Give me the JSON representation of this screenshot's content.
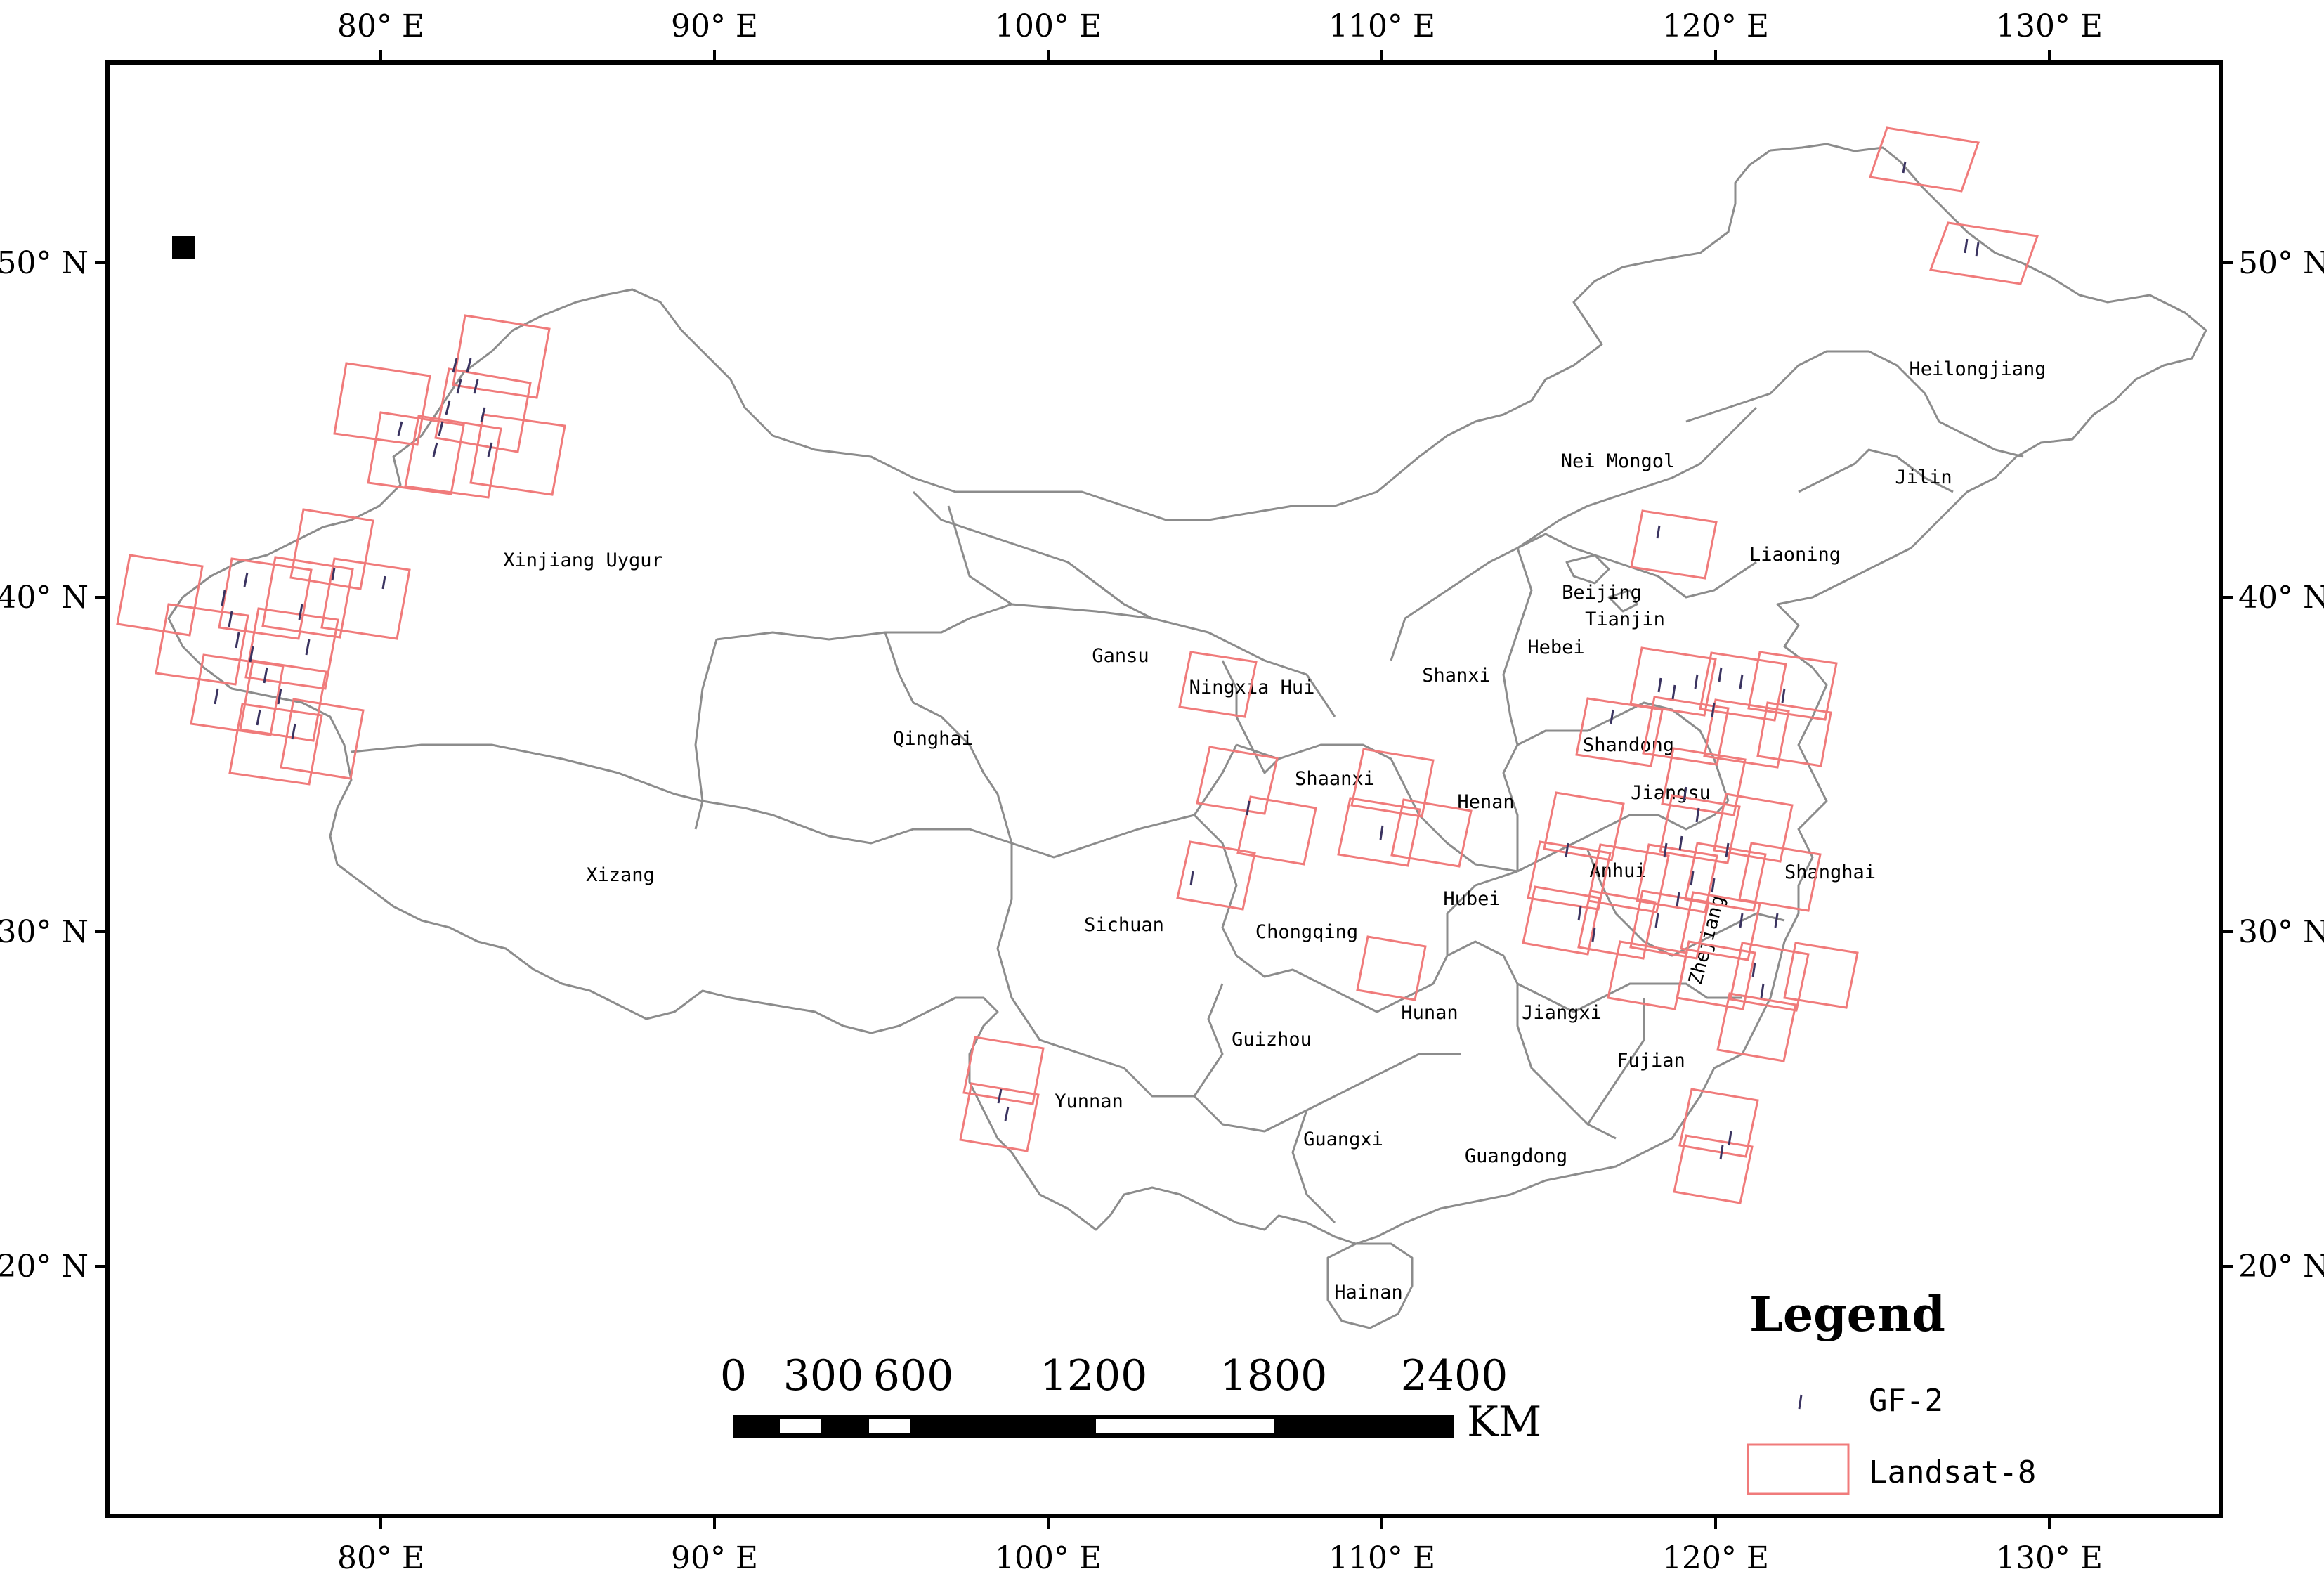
{
  "axes": {
    "lon_labels": [
      "80° E",
      "90° E",
      "100° E",
      "110° E",
      "120° E",
      "130° E"
    ],
    "lat_labels_left": [
      "50° N",
      "40° N",
      "30° N",
      "20° N"
    ],
    "lat_labels_right": [
      "50° N",
      "40° N",
      "30° N",
      "20° N"
    ]
  },
  "provinces": [
    {
      "name": "Heilongjiang"
    },
    {
      "name": "Jilin"
    },
    {
      "name": "Liaoning"
    },
    {
      "name": "Nei Mongol"
    },
    {
      "name": "Beijing"
    },
    {
      "name": "Tianjin"
    },
    {
      "name": "Hebei"
    },
    {
      "name": "Shanxi"
    },
    {
      "name": "Shandong"
    },
    {
      "name": "Jiangsu"
    },
    {
      "name": "Shanghai"
    },
    {
      "name": "Anhui"
    },
    {
      "name": "Zhejiang"
    },
    {
      "name": "Henan"
    },
    {
      "name": "Hubei"
    },
    {
      "name": "Hunan"
    },
    {
      "name": "Jiangxi"
    },
    {
      "name": "Fujian"
    },
    {
      "name": "Guangdong"
    },
    {
      "name": "Guangxi"
    },
    {
      "name": "Hainan"
    },
    {
      "name": "Guizhou"
    },
    {
      "name": "Yunnan"
    },
    {
      "name": "Sichuan"
    },
    {
      "name": "Chongqing"
    },
    {
      "name": "Shaanxi"
    },
    {
      "name": "Ningxia Hui"
    },
    {
      "name": "Gansu"
    },
    {
      "name": "Qinghai"
    },
    {
      "name": "Xizang"
    },
    {
      "name": "Xinjiang Uygur"
    }
  ],
  "scale_bar": {
    "ticks": [
      "0",
      "300",
      "600",
      "1200",
      "1800",
      "2400"
    ],
    "unit": "KM"
  },
  "legend": {
    "title": "Legend",
    "items": [
      {
        "label": "GF-2",
        "symbol": "gf2-strip"
      },
      {
        "label": "Landsat-8",
        "symbol": "landsat8-footprint",
        "color": "#f07b7b"
      }
    ]
  },
  "colors": {
    "frame": "#000000",
    "boundary": "#8c8c8c",
    "landsat8": "#f07b7b",
    "gf2": "#3a3360"
  },
  "icons": {
    "north_marker": "black-square"
  }
}
